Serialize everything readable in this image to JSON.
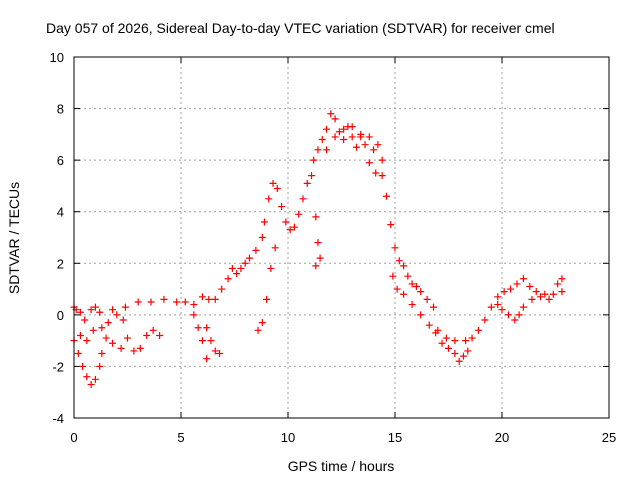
{
  "chart_data": {
    "type": "scatter",
    "title": "Day 057 of 2026, Sidereal Day-to-day VTEC variation (SDTVAR) for receiver cmel",
    "xlabel": "GPS time / hours",
    "ylabel": "SDTVAR / TECUs",
    "xlim": [
      0,
      25
    ],
    "ylim": [
      -4,
      10
    ],
    "xticks": [
      0,
      5,
      10,
      15,
      20,
      25
    ],
    "yticks": [
      -4,
      -2,
      0,
      2,
      4,
      6,
      8,
      10
    ],
    "x_tick_labels": [
      "0",
      "5",
      "10",
      "15",
      "20",
      "25"
    ],
    "y_tick_labels": [
      "-4",
      "-2",
      "0",
      "2",
      "4",
      "6",
      "8",
      "10"
    ],
    "grid": true,
    "marker": "+",
    "color": "#ff0000",
    "series": [
      {
        "name": "SDTVAR",
        "points": [
          [
            0.0,
            0.3
          ],
          [
            0.1,
            0.2
          ],
          [
            0.3,
            0.1
          ],
          [
            0.5,
            -0.2
          ],
          [
            0.8,
            0.2
          ],
          [
            1.0,
            0.3
          ],
          [
            1.2,
            0.1
          ],
          [
            0.0,
            -1.0
          ],
          [
            0.2,
            -1.5
          ],
          [
            0.4,
            -2.0
          ],
          [
            0.6,
            -2.4
          ],
          [
            0.8,
            -2.7
          ],
          [
            1.0,
            -2.5
          ],
          [
            1.2,
            -2.0
          ],
          [
            1.3,
            -1.5
          ],
          [
            0.3,
            -0.8
          ],
          [
            0.6,
            -1.0
          ],
          [
            0.9,
            -0.6
          ],
          [
            1.3,
            -0.5
          ],
          [
            1.6,
            -0.3
          ],
          [
            2.0,
            0.0
          ],
          [
            2.3,
            -0.2
          ],
          [
            1.5,
            -0.9
          ],
          [
            1.8,
            -1.1
          ],
          [
            2.2,
            -1.3
          ],
          [
            2.5,
            -0.9
          ],
          [
            2.8,
            -1.4
          ],
          [
            3.1,
            -1.3
          ],
          [
            3.4,
            -0.8
          ],
          [
            3.7,
            -0.6
          ],
          [
            4.0,
            -0.8
          ],
          [
            1.8,
            0.2
          ],
          [
            2.4,
            0.3
          ],
          [
            3.0,
            0.5
          ],
          [
            3.6,
            0.5
          ],
          [
            4.2,
            0.6
          ],
          [
            4.8,
            0.5
          ],
          [
            5.2,
            0.5
          ],
          [
            5.6,
            0.4
          ],
          [
            6.0,
            0.7
          ],
          [
            6.3,
            0.6
          ],
          [
            6.6,
            0.6
          ],
          [
            6.9,
            1.0
          ],
          [
            7.2,
            1.4
          ],
          [
            7.4,
            1.8
          ],
          [
            7.6,
            1.6
          ],
          [
            7.8,
            1.8
          ],
          [
            8.0,
            2.0
          ],
          [
            8.2,
            2.2
          ],
          [
            8.5,
            2.5
          ],
          [
            8.8,
            3.0
          ],
          [
            6.2,
            -0.5
          ],
          [
            6.4,
            -1.0
          ],
          [
            6.6,
            -1.4
          ],
          [
            6.8,
            -1.5
          ],
          [
            5.6,
            0.0
          ],
          [
            5.8,
            -0.5
          ],
          [
            6.0,
            -1.0
          ],
          [
            6.2,
            -1.7
          ],
          [
            8.6,
            -0.6
          ],
          [
            8.8,
            -0.3
          ],
          [
            9.0,
            0.6
          ],
          [
            9.2,
            1.8
          ],
          [
            9.4,
            2.6
          ],
          [
            8.9,
            3.6
          ],
          [
            9.1,
            4.5
          ],
          [
            9.3,
            5.1
          ],
          [
            9.5,
            4.9
          ],
          [
            9.7,
            4.2
          ],
          [
            9.9,
            3.6
          ],
          [
            10.1,
            3.3
          ],
          [
            10.3,
            3.4
          ],
          [
            10.5,
            3.9
          ],
          [
            10.7,
            4.5
          ],
          [
            10.9,
            5.1
          ],
          [
            11.1,
            5.4
          ],
          [
            11.3,
            3.8
          ],
          [
            11.4,
            2.8
          ],
          [
            11.5,
            2.2
          ],
          [
            11.3,
            1.9
          ],
          [
            11.2,
            6.0
          ],
          [
            11.4,
            6.4
          ],
          [
            11.6,
            6.8
          ],
          [
            11.8,
            7.2
          ],
          [
            12.0,
            7.8
          ],
          [
            12.2,
            7.6
          ],
          [
            12.4,
            7.1
          ],
          [
            12.6,
            6.8
          ],
          [
            12.8,
            7.3
          ],
          [
            13.0,
            6.9
          ],
          [
            13.2,
            6.5
          ],
          [
            13.4,
            6.9
          ],
          [
            13.6,
            6.6
          ],
          [
            13.8,
            6.9
          ],
          [
            14.0,
            6.4
          ],
          [
            14.2,
            6.6
          ],
          [
            14.4,
            6.0
          ],
          [
            11.8,
            6.4
          ],
          [
            12.2,
            6.9
          ],
          [
            12.6,
            7.2
          ],
          [
            13.0,
            7.3
          ],
          [
            13.4,
            7.0
          ],
          [
            13.8,
            5.9
          ],
          [
            14.1,
            5.5
          ],
          [
            14.4,
            5.4
          ],
          [
            14.6,
            4.6
          ],
          [
            14.8,
            3.5
          ],
          [
            15.0,
            2.6
          ],
          [
            15.2,
            2.1
          ],
          [
            15.4,
            1.9
          ],
          [
            15.6,
            1.5
          ],
          [
            15.8,
            1.2
          ],
          [
            16.0,
            1.1
          ],
          [
            16.2,
            0.9
          ],
          [
            16.5,
            0.6
          ],
          [
            16.8,
            0.3
          ],
          [
            14.9,
            1.5
          ],
          [
            15.1,
            1.0
          ],
          [
            15.4,
            0.8
          ],
          [
            15.8,
            0.4
          ],
          [
            16.2,
            0.0
          ],
          [
            16.6,
            -0.4
          ],
          [
            16.9,
            -0.7
          ],
          [
            17.2,
            -1.1
          ],
          [
            17.5,
            -1.3
          ],
          [
            17.8,
            -1.5
          ],
          [
            18.0,
            -1.8
          ],
          [
            18.2,
            -1.6
          ],
          [
            18.4,
            -1.4
          ],
          [
            17.0,
            -0.6
          ],
          [
            17.4,
            -0.9
          ],
          [
            17.8,
            -1.0
          ],
          [
            18.3,
            -1.0
          ],
          [
            18.6,
            -0.9
          ],
          [
            18.9,
            -0.6
          ],
          [
            19.2,
            -0.2
          ],
          [
            19.5,
            0.3
          ],
          [
            19.8,
            0.7
          ],
          [
            20.1,
            0.9
          ],
          [
            20.4,
            1.0
          ],
          [
            20.7,
            1.2
          ],
          [
            21.0,
            1.4
          ],
          [
            21.3,
            1.1
          ],
          [
            21.6,
            0.9
          ],
          [
            22.0,
            0.8
          ],
          [
            22.4,
            0.8
          ],
          [
            22.8,
            0.9
          ],
          [
            19.8,
            0.4
          ],
          [
            20.0,
            0.2
          ],
          [
            20.3,
            0.0
          ],
          [
            20.6,
            -0.2
          ],
          [
            20.8,
            0.0
          ],
          [
            21.0,
            0.3
          ],
          [
            21.4,
            0.6
          ],
          [
            21.8,
            0.7
          ],
          [
            22.2,
            0.6
          ],
          [
            22.6,
            1.2
          ],
          [
            22.8,
            1.4
          ]
        ]
      }
    ]
  }
}
